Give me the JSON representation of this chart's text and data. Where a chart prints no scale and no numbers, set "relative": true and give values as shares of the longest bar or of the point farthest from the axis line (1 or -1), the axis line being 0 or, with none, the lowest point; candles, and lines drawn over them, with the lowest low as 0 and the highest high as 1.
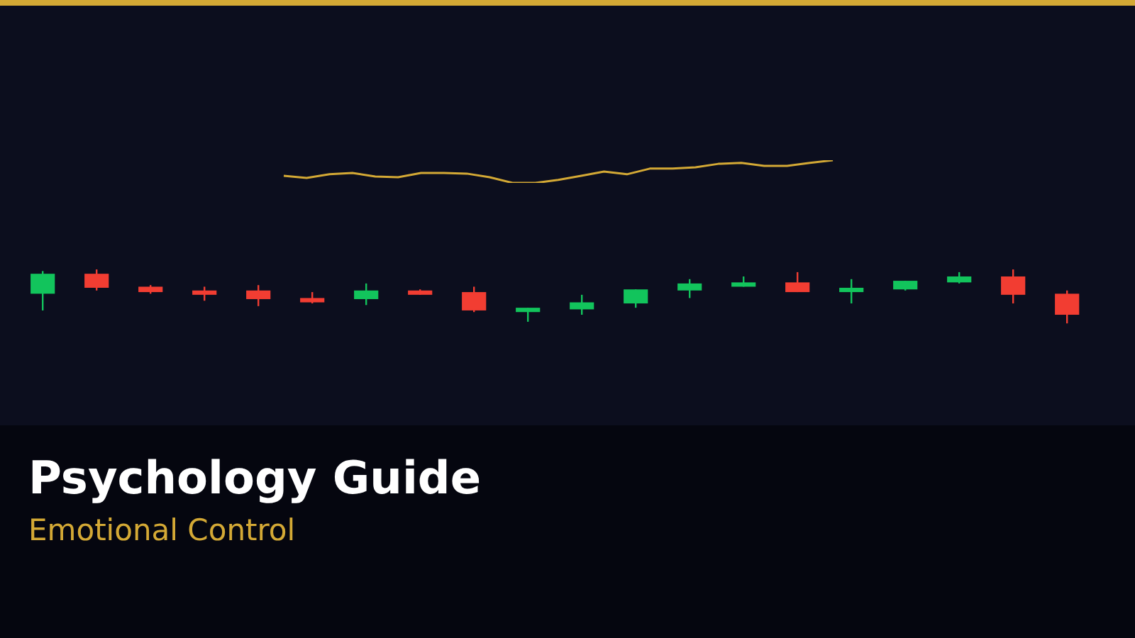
{
  "chart_data": [
    {
      "type": "candlestick",
      "title": "Psychology Guide",
      "subtitle": "Emotional Control",
      "relative": true,
      "categories": [
        null,
        null,
        null,
        null,
        null,
        null,
        null,
        null,
        null,
        null,
        null,
        null,
        null,
        null,
        null,
        null,
        null,
        null,
        null,
        null
      ],
      "ohlc": [
        [
          0.55,
          0.97,
          0.24,
          0.92
        ],
        [
          0.92,
          1.0,
          0.61,
          0.66
        ],
        [
          0.68,
          0.71,
          0.55,
          0.58
        ],
        [
          0.61,
          0.68,
          0.42,
          0.53
        ],
        [
          0.61,
          0.71,
          0.32,
          0.45
        ],
        [
          0.47,
          0.58,
          0.37,
          0.39
        ],
        [
          0.45,
          0.74,
          0.34,
          0.61
        ],
        [
          0.61,
          0.63,
          0.53,
          0.53
        ],
        [
          0.58,
          0.68,
          0.21,
          0.24
        ],
        [
          0.21,
          0.29,
          0.03,
          0.29
        ],
        [
          0.26,
          0.53,
          0.16,
          0.39
        ],
        [
          0.37,
          0.63,
          0.29,
          0.63
        ],
        [
          0.61,
          0.82,
          0.47,
          0.74
        ],
        [
          0.68,
          0.87,
          0.68,
          0.76
        ],
        [
          0.76,
          0.95,
          0.58,
          0.58
        ],
        [
          0.58,
          0.82,
          0.37,
          0.66
        ],
        [
          0.63,
          0.79,
          0.61,
          0.79
        ],
        [
          0.76,
          0.95,
          0.74,
          0.87
        ],
        [
          0.87,
          1.0,
          0.37,
          0.53
        ],
        [
          0.55,
          0.61,
          0,
          0.16
        ]
      ],
      "colors": [
        "#12c45c",
        "#f23d32",
        "#f23d32",
        "#f23d32",
        "#f23d32",
        "#f23d32",
        "#12c45c",
        "#f23d32",
        "#f23d32",
        "#12c45c",
        "#12c45c",
        "#12c45c",
        "#12c45c",
        "#12c45c",
        "#f23d32",
        "#12c45c",
        "#12c45c",
        "#12c45c",
        "#f23d32",
        "#f23d32"
      ]
    },
    {
      "type": "line",
      "relative": true,
      "color": "#d4a935",
      "categories": [
        null,
        null,
        null,
        null,
        null,
        null,
        null,
        null,
        null,
        null,
        null,
        null,
        null,
        null,
        null,
        null,
        null,
        null,
        null,
        null,
        null,
        null,
        null,
        null,
        null
      ],
      "values": [
        0.31,
        0.22,
        0.38,
        0.44,
        0.28,
        0.25,
        0.44,
        0.44,
        0.41,
        0.25,
        0,
        0,
        0.13,
        0.31,
        0.5,
        0.38,
        0.63,
        0.63,
        0.69,
        0.84,
        0.88,
        0.75,
        0.75,
        0.88,
        1
      ]
    }
  ]
}
